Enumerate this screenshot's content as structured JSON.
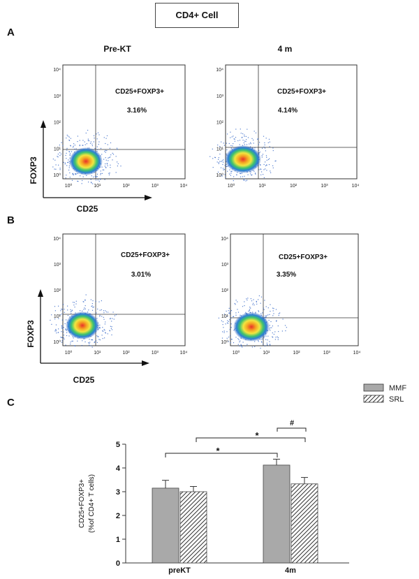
{
  "title": "CD4+ Cell",
  "panels": {
    "A": "A",
    "B": "B",
    "C": "C"
  },
  "flow_columns": [
    "Pre-KT",
    "4 m"
  ],
  "flow_axes": {
    "x_label": "CD25",
    "y_label": "FOXP3",
    "tick_labels": [
      "10⁰",
      "10¹",
      "10²",
      "10³",
      "10⁴"
    ]
  },
  "flow_plots": [
    {
      "gate_label": "CD25+FOXP3+",
      "percent": "3.16%"
    },
    {
      "gate_label": "CD25+FOXP3+",
      "percent": "4.14%"
    },
    {
      "gate_label": "CD25+FOXP3+",
      "percent": "3.01%"
    },
    {
      "gate_label": "CD25+FOXP3+",
      "percent": "3.35%"
    }
  ],
  "chart_data": {
    "type": "bar",
    "categories": [
      "preKT",
      "4m"
    ],
    "series": [
      {
        "name": "MMF",
        "values": [
          3.15,
          4.12
        ],
        "errors": [
          0.33,
          0.25
        ],
        "fill": "#a9a9a9"
      },
      {
        "name": "SRL",
        "values": [
          3.0,
          3.33
        ],
        "errors": [
          0.22,
          0.27
        ],
        "pattern": "hatched"
      }
    ],
    "ylabel_line1": "CD25+FOXP3+",
    "ylabel_line2": "(%of CD4+ T cells)",
    "ylim": [
      0,
      5
    ],
    "yticks": [
      "0",
      "1",
      "2",
      "3",
      "4",
      "5"
    ],
    "annotations": [
      "*",
      "*",
      "#"
    ],
    "legend_position": "top-right"
  },
  "colors": {
    "mmf": "#a9a9a9",
    "axis": "#333333"
  }
}
